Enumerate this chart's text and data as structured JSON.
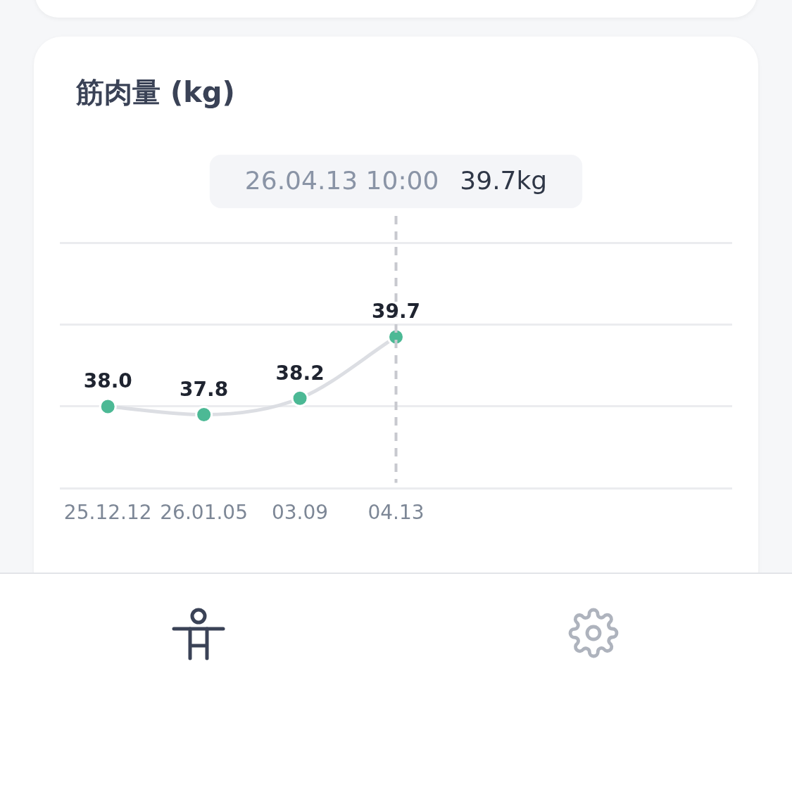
{
  "chart_data": {
    "type": "line",
    "title": "筋肉量 (kg)",
    "categories": [
      "25.12.12",
      "26.01.05",
      "03.09",
      "04.13",
      null,
      null,
      null
    ],
    "series": [
      {
        "color": "#4cb995",
        "values": [
          38.0,
          37.8,
          38.2,
          39.7,
          null,
          null,
          null
        ],
        "value_labels": [
          "38.0",
          "37.8",
          "38.2",
          "39.7",
          null,
          null,
          null
        ]
      }
    ],
    "ylim": [
      36,
      42
    ],
    "yticks": [
      {
        "value": 36,
        "label": null
      },
      {
        "value": 38,
        "label": null
      },
      {
        "value": 40,
        "label": null
      },
      {
        "value": 42,
        "label": null
      }
    ],
    "tick_labels": "x",
    "grid": "y",
    "legend": false,
    "marker": "circle",
    "ref_lines": [
      {
        "axis": "x",
        "value": "04.13",
        "color": "#c8c9cf",
        "line_style": "dashed"
      }
    ],
    "annotations": [
      "26.04.13 10:00",
      "39.7kg"
    ]
  }
}
